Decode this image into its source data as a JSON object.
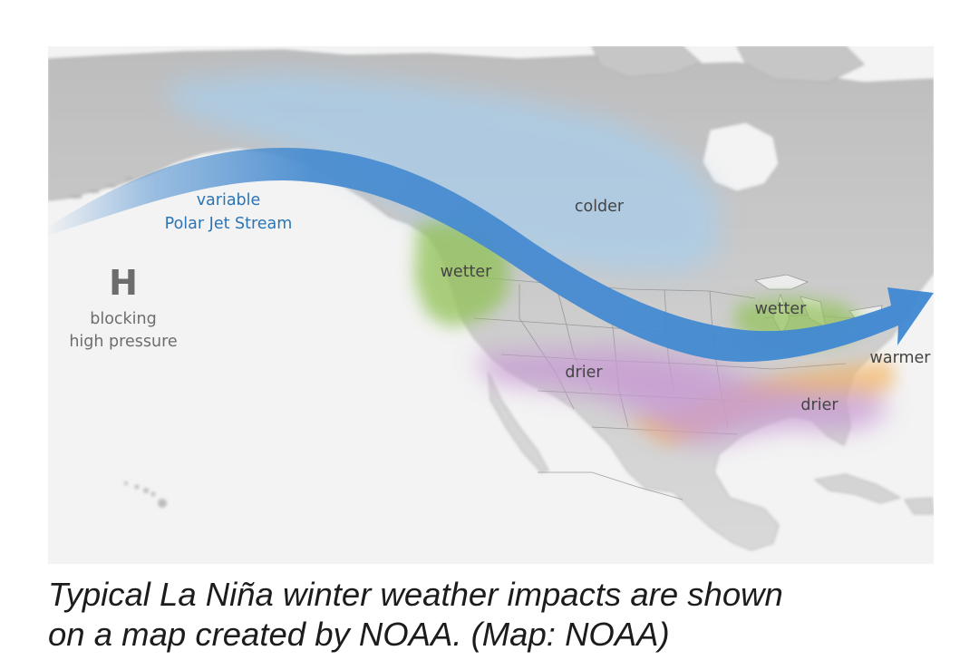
{
  "map": {
    "jet_stream_label": {
      "line1": "variable",
      "line2": "Polar Jet Stream",
      "color": "#2b74b6"
    },
    "high_pressure": {
      "symbol": "H",
      "line1": "blocking",
      "line2": "high pressure",
      "color": "#6d6d6d"
    },
    "impact_labels": {
      "colder": "colder",
      "wetter_west": "wetter",
      "wetter_east": "wetter",
      "drier_west": "drier",
      "drier_east": "drier",
      "warmer": "warmer"
    },
    "legend_colors": {
      "colder": "#a9cdea",
      "wetter": "#93c25a",
      "drier": "#c79ad3",
      "warmer": "#f4b35a",
      "jet_stream": "#4a8dd0",
      "land": "#c9c9c9",
      "ocean": "#f3f3f3"
    }
  },
  "caption": {
    "line1": "Typical La Niña winter weather impacts are shown",
    "line2": "on a map created by NOAA. (Map: NOAA)"
  }
}
